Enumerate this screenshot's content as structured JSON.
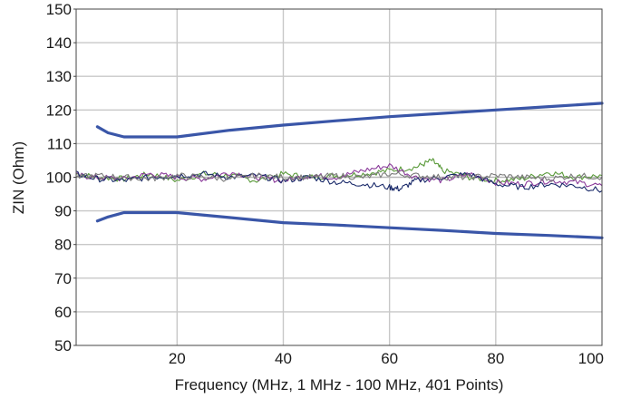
{
  "chart_data": {
    "type": "line",
    "title": "",
    "xlabel": "Frequency (MHz, 1 MHz - 100 MHz, 401 Points)",
    "ylabel": "ZIN (Ohm)",
    "xlim": [
      1,
      100
    ],
    "ylim": [
      50,
      150
    ],
    "x_ticks": [
      20,
      40,
      60,
      80,
      100
    ],
    "y_ticks": [
      50,
      60,
      70,
      80,
      90,
      100,
      110,
      120,
      130,
      140,
      150
    ],
    "grid": true,
    "legend": "none",
    "colors": {
      "limit": "#3a56a8",
      "grid": "#c8c8c8",
      "nominal": "#b8b8b8",
      "trace_green": "#5a9a3a",
      "trace_purple": "#8a3a9a",
      "trace_blue_dark": "#1a2a6a",
      "trace_gray": "#7a7a7a"
    },
    "nominal_line": {
      "y": 100
    },
    "series": [
      {
        "role": "upper-limit",
        "x": [
          5,
          7,
          10,
          15,
          20,
          30,
          40,
          50,
          60,
          70,
          80,
          90,
          100
        ],
        "y": [
          115,
          113.2,
          112,
          112,
          112,
          114,
          115.5,
          116.8,
          118,
          119,
          120,
          121,
          122
        ]
      },
      {
        "role": "lower-limit",
        "x": [
          5,
          7,
          10,
          15,
          20,
          30,
          40,
          50,
          60,
          70,
          80,
          90,
          100
        ],
        "y": [
          87,
          88.2,
          89.5,
          89.5,
          89.5,
          88,
          86.5,
          85.8,
          85,
          84.2,
          83.3,
          82.7,
          82
        ]
      },
      {
        "role": "trace-green",
        "x": [
          1,
          5,
          10,
          15,
          20,
          25,
          30,
          35,
          40,
          45,
          50,
          55,
          60,
          65,
          68,
          70,
          75,
          80,
          85,
          90,
          95,
          100
        ],
        "y": [
          101,
          100,
          99.5,
          101,
          99,
          101,
          100.5,
          99,
          101,
          100,
          100.5,
          101,
          102,
          103,
          105,
          102,
          100,
          99,
          99.5,
          101.5,
          100,
          100.5
        ]
      },
      {
        "role": "trace-purple",
        "x": [
          1,
          5,
          10,
          15,
          20,
          25,
          30,
          35,
          40,
          45,
          50,
          55,
          60,
          65,
          70,
          75,
          80,
          85,
          90,
          95,
          100
        ],
        "y": [
          100.5,
          100,
          99.5,
          101,
          100,
          99.5,
          101.5,
          100,
          99,
          100.5,
          100,
          102,
          103.5,
          100,
          99,
          101,
          98.5,
          98,
          99,
          98.5,
          97.5
        ]
      },
      {
        "role": "trace-blue-dark",
        "x": [
          1,
          5,
          10,
          15,
          20,
          25,
          30,
          35,
          40,
          45,
          50,
          55,
          60,
          62,
          65,
          70,
          75,
          80,
          85,
          90,
          95,
          100
        ],
        "y": [
          101,
          99.5,
          99,
          100,
          100.5,
          101,
          100,
          100.5,
          99,
          100,
          98.5,
          98,
          97,
          96.5,
          99,
          100,
          101,
          98,
          97,
          98,
          97.5,
          96
        ]
      },
      {
        "role": "trace-gray",
        "x": [
          1,
          5,
          10,
          15,
          20,
          25,
          30,
          35,
          40,
          45,
          50,
          55,
          60,
          65,
          70,
          75,
          80,
          85,
          90,
          95,
          100
        ],
        "y": [
          100,
          100.5,
          100,
          99.5,
          100.5,
          100,
          99.5,
          100.5,
          100,
          100,
          100.5,
          100,
          101,
          100.5,
          100,
          100,
          100.5,
          100,
          99.5,
          100.5,
          100
        ]
      }
    ]
  }
}
